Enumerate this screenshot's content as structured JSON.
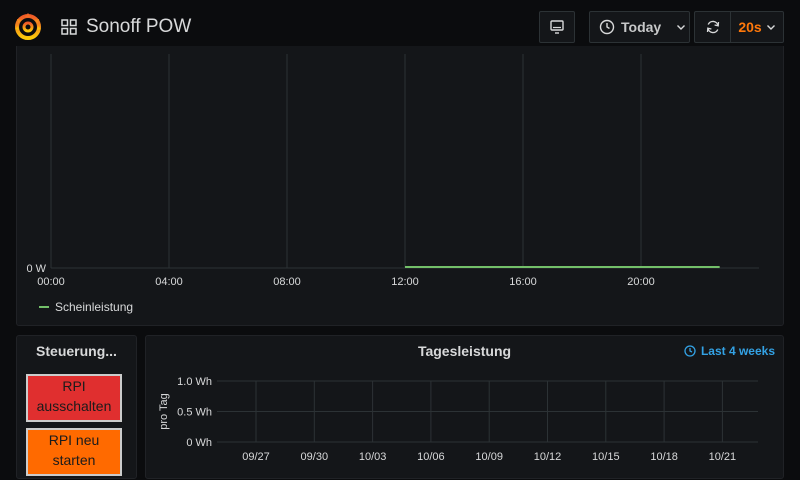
{
  "header": {
    "dashboard_title": "Sonoff POW",
    "time_range_label": "Today",
    "refresh_interval": "20s"
  },
  "colors": {
    "accent_orange": "#ff780a",
    "series_green": "#73bf69",
    "link_blue": "#33a2e5",
    "button_red": "#e02f2f",
    "button_orange": "#ff6a00"
  },
  "power_panel": {
    "legend_label": "Scheinleistung"
  },
  "control_panel": {
    "title": "Steuerung...",
    "buttons": [
      {
        "label_line1": "RPI",
        "label_line2": "ausschalten"
      },
      {
        "label_line1": "RPI neu",
        "label_line2": "starten"
      }
    ]
  },
  "daily_panel": {
    "title": "Tagesleistung",
    "time_override": "Last 4 weeks"
  },
  "chart_data": [
    {
      "type": "line",
      "title": "",
      "x_ticks": [
        "00:00",
        "04:00",
        "08:00",
        "12:00",
        "16:00",
        "20:00"
      ],
      "y_ticks": [
        "0 W"
      ],
      "series": [
        {
          "name": "Scheinleistung",
          "x_start": "12:00",
          "x_end": "22:40",
          "value": 0
        }
      ],
      "grid": true,
      "legend": "bottom-left"
    },
    {
      "type": "bar",
      "title": "Tagesleistung",
      "ylabel": "pro Tag",
      "y_ticks": [
        "1.0 Wh",
        "0.5 Wh",
        "0 Wh"
      ],
      "ylim": [
        0,
        1.0
      ],
      "x_ticks": [
        "09/27",
        "09/30",
        "10/03",
        "10/06",
        "10/09",
        "10/12",
        "10/15",
        "10/18",
        "10/21"
      ],
      "series": [],
      "grid": true
    }
  ]
}
